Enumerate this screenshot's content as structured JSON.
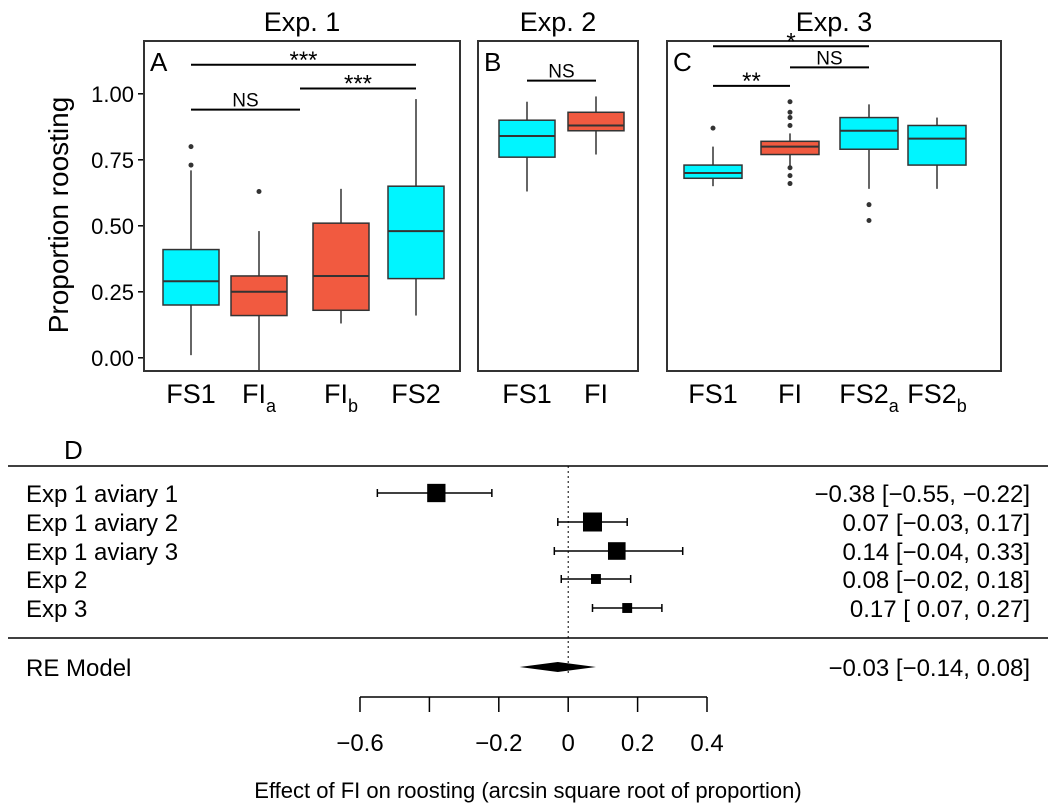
{
  "colors": {
    "sham": "#00F5FF",
    "fi": "#F15A40",
    "box_stroke": "#333333",
    "panel_border": "#333333"
  },
  "y_axis": {
    "label": "Proportion roosting",
    "ticks": [
      "0.00",
      "0.25",
      "0.50",
      "0.75",
      "1.00"
    ],
    "tick_values": [
      0,
      0.25,
      0.5,
      0.75,
      1.0
    ]
  },
  "chart_data": [
    {
      "type": "box",
      "panel_letter": "A",
      "title": "Exp. 1",
      "ylim": [
        -0.05,
        1.2
      ],
      "categories": [
        {
          "base": "FS1",
          "sub": ""
        },
        {
          "base": "FI",
          "sub": "a"
        },
        {
          "base": "FI",
          "sub": "b"
        },
        {
          "base": "FS2",
          "sub": ""
        }
      ],
      "boxes": [
        {
          "q1": 0.2,
          "median": 0.29,
          "q3": 0.41,
          "low": 0.01,
          "high": 0.71,
          "outliers": [
            0.73,
            0.8
          ],
          "color": "sham"
        },
        {
          "q1": 0.16,
          "median": 0.25,
          "q3": 0.31,
          "low": -0.05,
          "high": 0.48,
          "outliers": [
            0.63
          ],
          "color": "fi"
        },
        {
          "q1": 0.18,
          "median": 0.31,
          "q3": 0.51,
          "low": 0.13,
          "high": 0.64,
          "outliers": [],
          "color": "fi"
        },
        {
          "q1": 0.3,
          "median": 0.48,
          "q3": 0.65,
          "low": 0.16,
          "high": 0.98,
          "outliers": [],
          "color": "sham"
        }
      ],
      "comparisons": [
        {
          "from": 0,
          "to": 3,
          "y": 1.11,
          "label": "***"
        },
        {
          "from": 0,
          "to": 1.5,
          "y": 0.94,
          "label": "NS"
        },
        {
          "from": 1.5,
          "to": 3,
          "y": 1.02,
          "label": "***"
        }
      ]
    },
    {
      "type": "box",
      "panel_letter": "B",
      "title": "Exp. 2",
      "ylim": [
        -0.05,
        1.2
      ],
      "categories": [
        {
          "base": "FS1",
          "sub": ""
        },
        {
          "base": "FI",
          "sub": ""
        }
      ],
      "boxes": [
        {
          "q1": 0.76,
          "median": 0.84,
          "q3": 0.9,
          "low": 0.63,
          "high": 0.97,
          "outliers": [],
          "color": "sham"
        },
        {
          "q1": 0.86,
          "median": 0.88,
          "q3": 0.93,
          "low": 0.77,
          "high": 0.99,
          "outliers": [],
          "color": "fi"
        }
      ],
      "comparisons": [
        {
          "from": 0,
          "to": 1,
          "y": 1.05,
          "label": "NS"
        }
      ]
    },
    {
      "type": "box",
      "panel_letter": "C",
      "title": "Exp. 3",
      "ylim": [
        -0.05,
        1.2
      ],
      "categories": [
        {
          "base": "FS1",
          "sub": ""
        },
        {
          "base": "FI",
          "sub": ""
        },
        {
          "base": "FS2",
          "sub": "a"
        },
        {
          "base": "FS2",
          "sub": "b"
        }
      ],
      "boxes": [
        {
          "q1": 0.68,
          "median": 0.7,
          "q3": 0.73,
          "low": 0.65,
          "high": 0.8,
          "outliers": [
            0.87
          ],
          "color": "sham"
        },
        {
          "q1": 0.77,
          "median": 0.8,
          "q3": 0.82,
          "low": 0.72,
          "high": 0.85,
          "outliers": [
            0.66,
            0.69,
            0.72,
            0.88,
            0.91,
            0.93,
            0.97
          ],
          "color": "fi"
        },
        {
          "q1": 0.79,
          "median": 0.86,
          "q3": 0.91,
          "low": 0.64,
          "high": 0.96,
          "outliers": [
            0.52,
            0.58
          ],
          "color": "sham"
        },
        {
          "q1": 0.73,
          "median": 0.83,
          "q3": 0.88,
          "low": 0.64,
          "high": 0.91,
          "outliers": [],
          "color": "sham"
        }
      ],
      "comparisons": [
        {
          "from": 0,
          "to": 2,
          "y": 1.18,
          "label": "*"
        },
        {
          "from": 1,
          "to": 2,
          "y": 1.1,
          "label": "NS"
        },
        {
          "from": 0,
          "to": 1,
          "y": 1.03,
          "label": "**"
        }
      ]
    },
    {
      "type": "forest",
      "panel_letter": "D",
      "xlabel": "Effect of FI on roosting (arcsin square root of proportion)",
      "xlim": [
        -0.7,
        0.45
      ],
      "x_ticks": [
        -0.6,
        -0.4,
        -0.2,
        0,
        0.2,
        0.4
      ],
      "x_tick_labels": [
        "−0.6",
        "",
        "−0.2",
        "0",
        "0.2",
        "0.4"
      ],
      "studies": [
        {
          "label": "Exp 1 aviary 1",
          "est": -0.38,
          "lo": -0.55,
          "hi": -0.22,
          "weight": 0.95,
          "text": "−0.38 [−0.55, −0.22]"
        },
        {
          "label": "Exp 1 aviary 2",
          "est": 0.07,
          "lo": -0.03,
          "hi": 0.17,
          "weight": 1.0,
          "text": "0.07 [−0.03,  0.17]"
        },
        {
          "label": "Exp 1 aviary 3",
          "est": 0.14,
          "lo": -0.04,
          "hi": 0.33,
          "weight": 0.9,
          "text": "0.14 [−0.04,  0.33]"
        },
        {
          "label": "Exp 2",
          "est": 0.08,
          "lo": -0.02,
          "hi": 0.18,
          "weight": 0.35,
          "text": "0.08 [−0.02,  0.18]"
        },
        {
          "label": "Exp 3",
          "est": 0.17,
          "lo": 0.07,
          "hi": 0.27,
          "weight": 0.35,
          "text": "0.17 [ 0.07,  0.27]"
        }
      ],
      "summary": {
        "label": "RE Model",
        "est": -0.03,
        "lo": -0.14,
        "hi": 0.08,
        "text": "−0.03 [−0.14,  0.08]"
      }
    }
  ]
}
